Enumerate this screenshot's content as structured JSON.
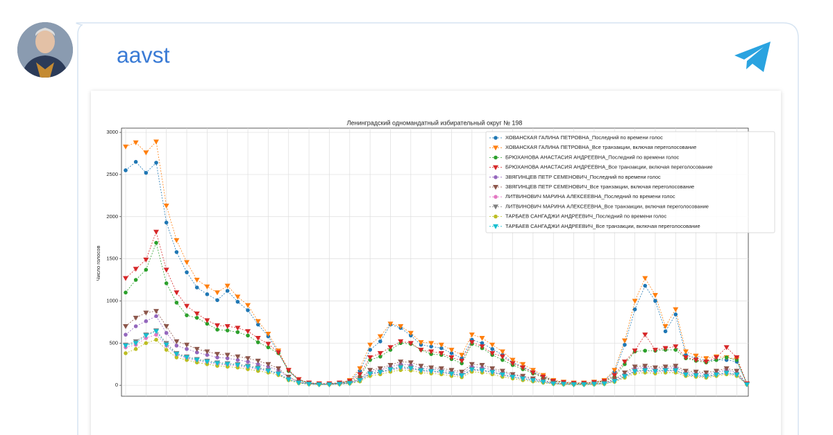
{
  "post": {
    "author": "aavst"
  },
  "chart_data": {
    "type": "line",
    "title": "Ленинградский одномандатный избирательный округ № 198",
    "ylabel": "Число голосов",
    "ylim": [
      -130,
      3050
    ],
    "yticks": [
      0,
      500,
      1000,
      1500,
      2000,
      2500,
      3000
    ],
    "grid": true,
    "legend": "upper right",
    "series": [
      {
        "name": "ХОВАНСКАЯ ГАЛИНА ПЕТРОВНА_Последний по времени голос",
        "color": "#1f77b4",
        "values": [
          2550,
          2650,
          2520,
          2640,
          1930,
          1580,
          1340,
          1160,
          1080,
          1010,
          1120,
          990,
          890,
          720,
          580,
          390,
          170,
          60,
          25,
          15,
          15,
          25,
          50,
          170,
          420,
          520,
          720,
          680,
          590,
          480,
          460,
          440,
          380,
          320,
          540,
          500,
          430,
          360,
          270,
          220,
          160,
          110,
          55,
          35,
          25,
          25,
          35,
          55,
          160,
          480,
          900,
          1180,
          1000,
          640,
          840,
          360,
          320,
          290,
          300,
          300,
          280,
          20
        ]
      },
      {
        "name": "ХОВАНСКАЯ ГАЛИНА ПЕТРОВНА_Все транзакции, включая переголосование",
        "color": "#ff7f0e",
        "values": [
          2830,
          2880,
          2760,
          2890,
          2130,
          1720,
          1460,
          1250,
          1170,
          1100,
          1180,
          1050,
          950,
          760,
          610,
          410,
          180,
          70,
          30,
          20,
          20,
          30,
          60,
          200,
          480,
          580,
          730,
          700,
          620,
          510,
          500,
          480,
          420,
          360,
          600,
          560,
          480,
          400,
          300,
          250,
          180,
          120,
          60,
          40,
          30,
          30,
          40,
          60,
          180,
          530,
          1000,
          1270,
          1070,
          700,
          900,
          400,
          350,
          320,
          340,
          330,
          310,
          20
        ]
      },
      {
        "name": "БРЮХАНОВА АНАСТАСИЯ АНДРЕЕВНА_Последний по времени голос",
        "color": "#2ca02c",
        "values": [
          1100,
          1250,
          1370,
          1690,
          1210,
          980,
          830,
          800,
          730,
          660,
          650,
          630,
          590,
          510,
          450,
          380,
          170,
          60,
          25,
          15,
          15,
          25,
          40,
          100,
          300,
          340,
          420,
          500,
          490,
          420,
          370,
          360,
          310,
          260,
          490,
          440,
          360,
          300,
          240,
          190,
          140,
          90,
          45,
          30,
          20,
          20,
          30,
          45,
          100,
          250,
          400,
          410,
          410,
          420,
          420,
          320,
          290,
          270,
          300,
          330,
          300,
          20
        ]
      },
      {
        "name": "БРЮХАНОВА АНАСТАСИЯ АНДРЕЕВНА_Все транзакции, включая переголосование",
        "color": "#d62728",
        "values": [
          1270,
          1380,
          1490,
          1820,
          1370,
          1100,
          940,
          850,
          770,
          710,
          700,
          680,
          640,
          560,
          490,
          390,
          180,
          70,
          30,
          20,
          20,
          30,
          50,
          130,
          330,
          380,
          450,
          520,
          500,
          420,
          400,
          380,
          330,
          290,
          510,
          460,
          380,
          340,
          260,
          210,
          150,
          100,
          50,
          35,
          25,
          25,
          35,
          50,
          120,
          280,
          410,
          600,
          420,
          440,
          460,
          330,
          300,
          280,
          330,
          450,
          330,
          20
        ]
      },
      {
        "name": "ЗВЯГИНЦЕВ ПЕТР СЕМЕНОВИЧ_Последний по времени голос",
        "color": "#9467bd",
        "values": [
          600,
          700,
          760,
          820,
          620,
          470,
          430,
          390,
          360,
          330,
          320,
          300,
          280,
          250,
          220,
          180,
          90,
          35,
          15,
          10,
          10,
          15,
          25,
          70,
          160,
          180,
          220,
          250,
          240,
          200,
          190,
          180,
          160,
          140,
          220,
          210,
          180,
          150,
          120,
          100,
          70,
          50,
          25,
          15,
          10,
          10,
          15,
          25,
          60,
          130,
          200,
          210,
          190,
          200,
          210,
          150,
          140,
          130,
          150,
          180,
          150,
          10
        ]
      },
      {
        "name": "ЗВЯГИНЦЕВ ПЕТР СЕМЕНОВИЧ_Все транзакции, включая переголосование",
        "color": "#8c564b",
        "values": [
          700,
          800,
          860,
          880,
          700,
          520,
          480,
          430,
          400,
          370,
          360,
          340,
          320,
          290,
          250,
          200,
          100,
          40,
          20,
          10,
          10,
          20,
          30,
          80,
          180,
          200,
          240,
          280,
          270,
          230,
          210,
          200,
          180,
          160,
          250,
          240,
          200,
          170,
          130,
          110,
          80,
          60,
          30,
          20,
          15,
          15,
          20,
          30,
          70,
          150,
          220,
          230,
          210,
          220,
          230,
          170,
          160,
          150,
          170,
          200,
          170,
          10
        ]
      },
      {
        "name": "ЛИТВИНОВИЧ МАРИНА АЛЕКСЕЕВНА_Последний по времени голос",
        "color": "#e377c2",
        "values": [
          450,
          480,
          560,
          600,
          470,
          360,
          320,
          290,
          270,
          250,
          240,
          230,
          210,
          190,
          170,
          130,
          65,
          28,
          14,
          9,
          9,
          14,
          22,
          55,
          130,
          150,
          180,
          200,
          195,
          170,
          160,
          150,
          130,
          110,
          180,
          170,
          150,
          120,
          95,
          75,
          55,
          38,
          18,
          13,
          9,
          9,
          13,
          18,
          45,
          100,
          160,
          170,
          160,
          170,
          170,
          120,
          110,
          100,
          120,
          140,
          120,
          10
        ]
      },
      {
        "name": "ЛИТВИНОВИЧ МАРИНА АЛЕКСЕЕВНА_Все транзакции, включая переголосование",
        "color": "#7f7f7f",
        "values": [
          480,
          520,
          600,
          650,
          500,
          380,
          340,
          310,
          290,
          270,
          260,
          250,
          230,
          210,
          180,
          140,
          70,
          30,
          15,
          10,
          10,
          15,
          25,
          60,
          140,
          160,
          190,
          220,
          210,
          180,
          170,
          160,
          140,
          120,
          190,
          180,
          160,
          130,
          100,
          80,
          60,
          40,
          20,
          15,
          10,
          10,
          15,
          20,
          50,
          110,
          170,
          180,
          170,
          180,
          180,
          130,
          120,
          110,
          130,
          150,
          130,
          10
        ]
      },
      {
        "name": "ТАРБАЕВ САНГАДЖИ АНДРЕЕВИЧ_Последний по времени голос",
        "color": "#bcbd22",
        "values": [
          380,
          430,
          500,
          540,
          420,
          330,
          300,
          270,
          250,
          230,
          220,
          210,
          190,
          170,
          150,
          120,
          60,
          25,
          12,
          8,
          8,
          12,
          20,
          45,
          110,
          130,
          160,
          180,
          175,
          150,
          140,
          130,
          110,
          95,
          160,
          150,
          130,
          100,
          80,
          60,
          45,
          30,
          15,
          10,
          8,
          8,
          10,
          15,
          40,
          90,
          140,
          150,
          140,
          150,
          150,
          110,
          100,
          90,
          110,
          130,
          110,
          10
        ]
      },
      {
        "name": "ТАРБАЕВ САНГАДЖИ АНДРЕЕВИЧ_Все транзакции, включая переголосование",
        "color": "#17becf",
        "values": [
          470,
          500,
          590,
          640,
          480,
          370,
          330,
          300,
          280,
          260,
          250,
          240,
          220,
          200,
          170,
          135,
          68,
          29,
          14,
          9,
          9,
          14,
          23,
          58,
          135,
          155,
          185,
          210,
          200,
          175,
          165,
          155,
          135,
          115,
          185,
          175,
          155,
          125,
          98,
          78,
          58,
          39,
          19,
          14,
          9,
          9,
          14,
          19,
          48,
          105,
          165,
          175,
          165,
          175,
          175,
          125,
          115,
          105,
          125,
          145,
          125,
          10
        ]
      }
    ]
  }
}
